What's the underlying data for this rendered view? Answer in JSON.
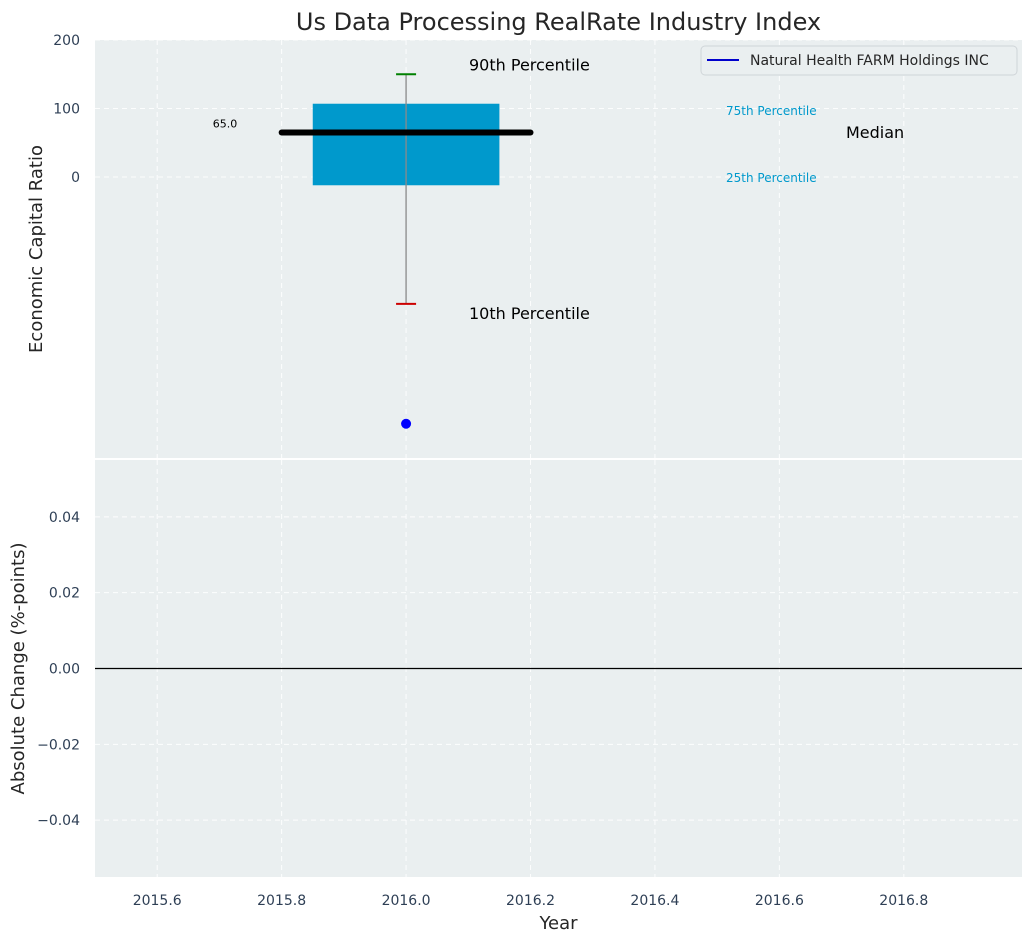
{
  "colors": {
    "panel_bg": "#eaeff0",
    "box_fill": "#0099cc",
    "median_line": "#000000",
    "whisker": "#8a8a8a",
    "p90_cap": "#008000",
    "p10_cap": "#cc0000",
    "company_point": "#0000ff",
    "zero_line": "#000000",
    "percentile_text": "#0099cc"
  },
  "chart_data": [
    {
      "type": "box",
      "title": "Us Data Processing RealRate Industry Index",
      "ylabel": "Economic Capital Ratio",
      "xlim": [
        2015.5,
        2016.99
      ],
      "ylim": [
        -410,
        200
      ],
      "yticks": [
        0,
        100,
        200
      ],
      "ytick_labels": [
        "0",
        "100",
        "200"
      ],
      "grid": true,
      "box": {
        "x": 2016.0,
        "x_left": 2015.85,
        "x_right": 2016.15,
        "p10": -185,
        "p25": -12,
        "median": 65,
        "p75": 107,
        "p90": 150,
        "median_x_left": 2015.8,
        "median_x_right": 2016.2
      },
      "company_point": {
        "x": 2016.0,
        "y": -360
      },
      "median_value_label": "65.0",
      "annotations": {
        "p90": "90th Percentile",
        "p10": "10th Percentile",
        "p75": "75th Percentile",
        "p25": "25th Percentile",
        "median": "Median"
      },
      "legend": {
        "placement": "top-right",
        "entries": [
          {
            "label": "Natural Health FARM Holdings INC",
            "color": "#0000cc"
          }
        ]
      }
    },
    {
      "type": "line",
      "ylabel": "Absolute Change (%-points)",
      "xlabel": "Year",
      "xlim": [
        2015.5,
        2016.99
      ],
      "ylim": [
        -0.055,
        0.055
      ],
      "xticks": [
        2015.6,
        2015.8,
        2016.0,
        2016.2,
        2016.4,
        2016.6,
        2016.8
      ],
      "xtick_labels": [
        "2015.6",
        "2015.8",
        "2016.0",
        "2016.2",
        "2016.4",
        "2016.6",
        "2016.8"
      ],
      "yticks": [
        -0.04,
        -0.02,
        0.0,
        0.02,
        0.04
      ],
      "ytick_labels": [
        "−0.04",
        "−0.02",
        "0.00",
        "0.02",
        "0.04"
      ],
      "reference_line_y": 0.0,
      "grid": true
    }
  ]
}
